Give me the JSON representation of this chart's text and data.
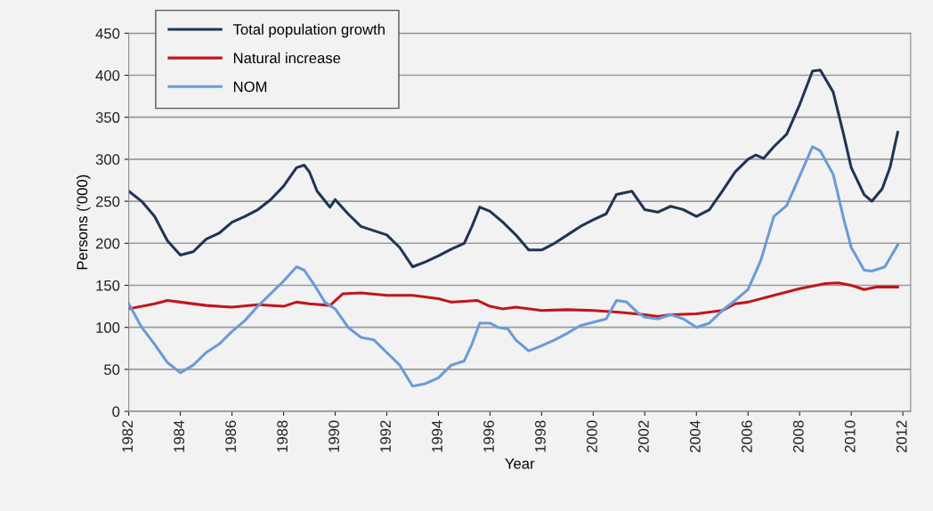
{
  "chart_data": {
    "type": "line",
    "xlabel": "Year",
    "ylabel": "Persons ('000)",
    "xlim": [
      1982,
      2012.3
    ],
    "xticks": [
      1982,
      1984,
      1986,
      1988,
      1990,
      1992,
      1994,
      1996,
      1998,
      2000,
      2002,
      2004,
      2006,
      2008,
      2010,
      2012
    ],
    "ylim": [
      0,
      450
    ],
    "yticks": [
      0,
      50,
      100,
      150,
      200,
      250,
      300,
      350,
      400,
      450
    ],
    "grid": "y",
    "legend": "top left",
    "marker": "none",
    "line_style": "solid",
    "series": [
      {
        "name": "Total population growth",
        "color": "#1f3554",
        "x": [
          1982,
          1982.5,
          1983,
          1983.5,
          1984,
          1984.5,
          1985,
          1985.5,
          1986,
          1986.5,
          1987,
          1987.5,
          1988,
          1988.5,
          1988.8,
          1989,
          1989.3,
          1989.8,
          1990,
          1990.5,
          1991,
          1991.5,
          1992,
          1992.5,
          1993,
          1993.5,
          1994,
          1994.5,
          1995,
          1995.3,
          1995.6,
          1996,
          1996.5,
          1997,
          1997.5,
          1998,
          1998.5,
          1999,
          1999.5,
          2000,
          2000.5,
          2000.9,
          2001.5,
          2002,
          2002.5,
          2003,
          2003.5,
          2004,
          2004.5,
          2005,
          2005.5,
          2006,
          2006.3,
          2006.6,
          2007,
          2007.5,
          2008,
          2008.5,
          2008.8,
          2009.3,
          2009.7,
          2010,
          2010.5,
          2010.8,
          2011.2,
          2011.5,
          2011.8
        ],
        "values": [
          262,
          250,
          232,
          203,
          186,
          190,
          205,
          212,
          225,
          232,
          240,
          252,
          268,
          290,
          293,
          285,
          262,
          243,
          252,
          235,
          220,
          215,
          210,
          195,
          172,
          178,
          185,
          193,
          200,
          220,
          243,
          238,
          225,
          210,
          192,
          192,
          200,
          210,
          220,
          228,
          235,
          258,
          262,
          240,
          237,
          244,
          240,
          232,
          240,
          262,
          285,
          300,
          305,
          301,
          315,
          330,
          365,
          405,
          406,
          380,
          330,
          290,
          258,
          250,
          265,
          290,
          332
        ]
      },
      {
        "name": "Natural increase",
        "color": "#c0161c",
        "x": [
          1982,
          1983,
          1983.5,
          1984,
          1985,
          1986,
          1987,
          1988,
          1988.5,
          1989,
          1989.8,
          1990.3,
          1991,
          1992,
          1993,
          1994,
          1994.5,
          1995,
          1995.5,
          1996,
          1996.5,
          1997,
          1998,
          1999,
          2000,
          2001,
          2002,
          2002.5,
          2003,
          2004,
          2005,
          2005.5,
          2006,
          2007,
          2008,
          2009,
          2009.5,
          2010,
          2010.5,
          2011,
          2011.8
        ],
        "values": [
          122,
          128,
          132,
          130,
          126,
          124,
          127,
          125,
          130,
          128,
          126,
          140,
          141,
          138,
          138,
          134,
          130,
          131,
          132,
          125,
          122,
          124,
          120,
          121,
          120,
          118,
          115,
          113,
          115,
          116,
          120,
          128,
          130,
          138,
          146,
          152,
          153,
          150,
          145,
          148,
          148
        ]
      },
      {
        "name": "NOM",
        "color": "#6a9bd8",
        "x": [
          1982,
          1982.5,
          1983,
          1983.5,
          1984,
          1984.5,
          1985,
          1985.5,
          1986,
          1986.5,
          1987,
          1987.5,
          1988,
          1988.5,
          1988.8,
          1989.2,
          1989.6,
          1990,
          1990.5,
          1991,
          1991.5,
          1992,
          1992.5,
          1993,
          1993.5,
          1994,
          1994.5,
          1995,
          1995.3,
          1995.6,
          1996,
          1996.3,
          1996.7,
          1997,
          1997.5,
          1998,
          1998.5,
          1999,
          1999.5,
          2000,
          2000.5,
          2000.9,
          2001.3,
          2001.7,
          2002,
          2002.5,
          2003,
          2003.5,
          2004,
          2004.5,
          2005,
          2005.5,
          2006,
          2006.5,
          2007,
          2007.5,
          2008,
          2008.5,
          2008.8,
          2009.3,
          2009.7,
          2010,
          2010.5,
          2010.8,
          2011.3,
          2011.8
        ],
        "values": [
          128,
          100,
          80,
          58,
          46,
          55,
          70,
          80,
          95,
          108,
          125,
          140,
          155,
          172,
          168,
          150,
          130,
          122,
          100,
          88,
          85,
          70,
          55,
          30,
          33,
          40,
          55,
          60,
          80,
          105,
          105,
          100,
          98,
          85,
          72,
          78,
          85,
          93,
          102,
          106,
          110,
          132,
          130,
          118,
          112,
          110,
          115,
          110,
          100,
          105,
          120,
          132,
          145,
          180,
          232,
          245,
          280,
          315,
          310,
          282,
          230,
          195,
          168,
          167,
          172,
          198
        ]
      }
    ]
  }
}
